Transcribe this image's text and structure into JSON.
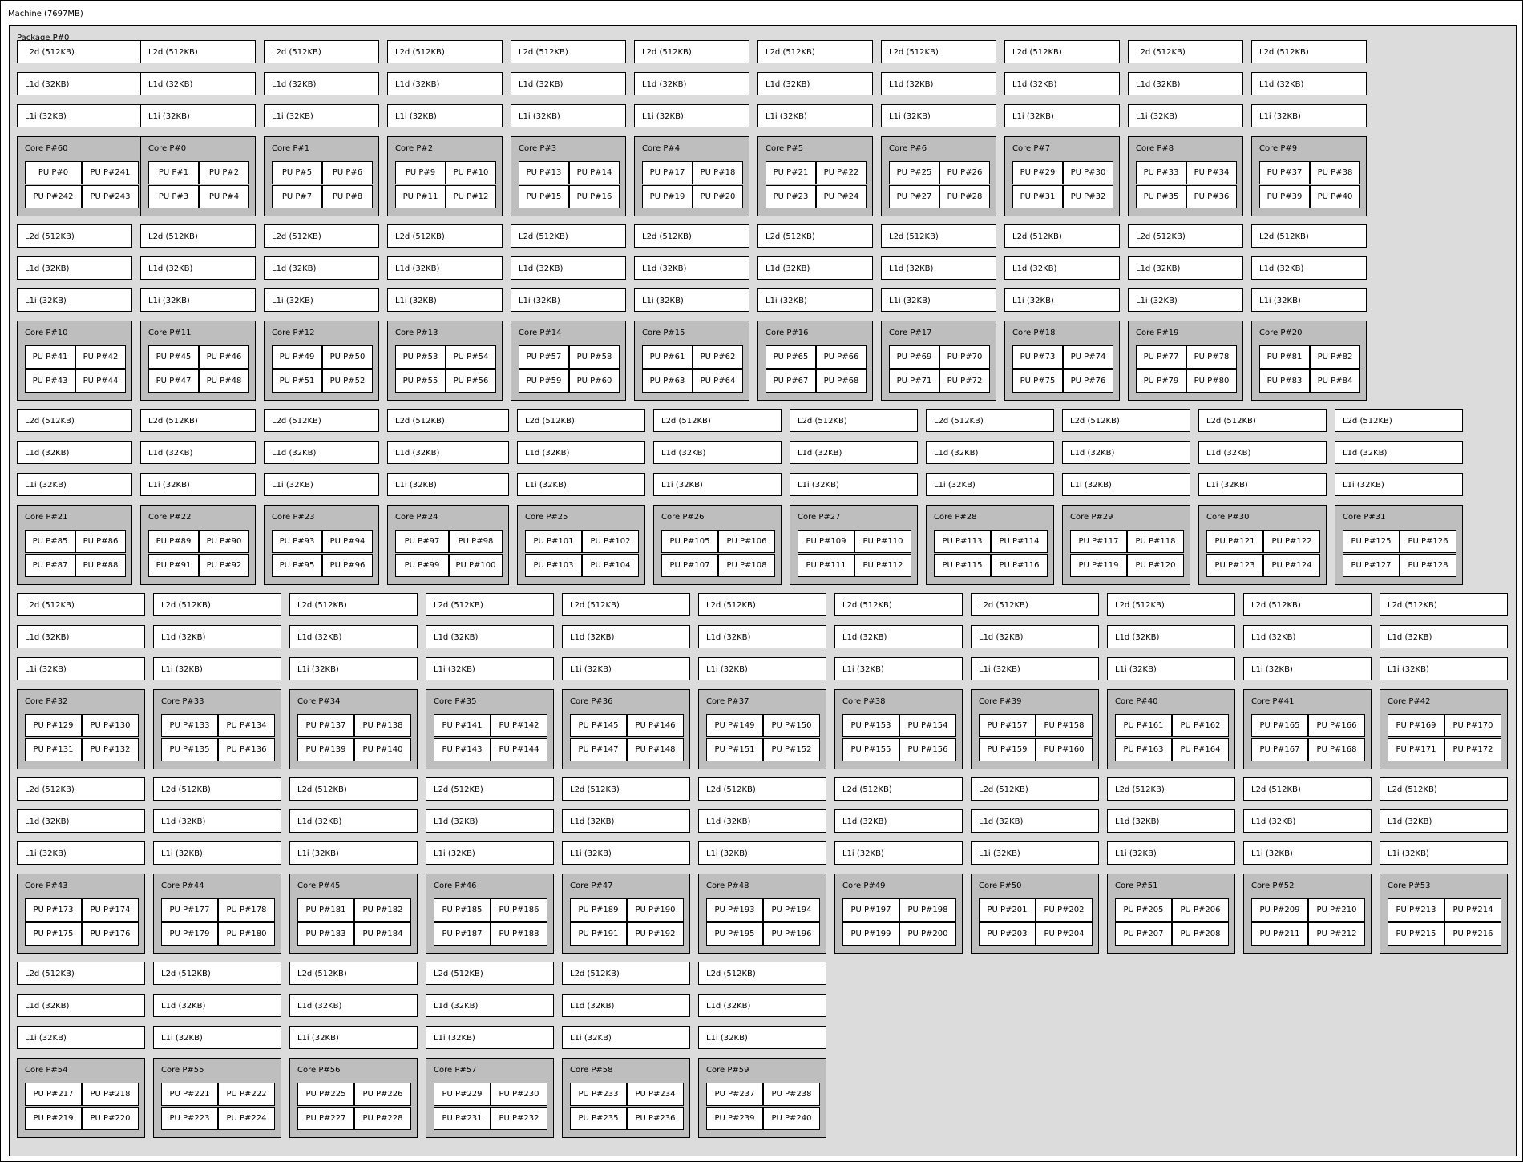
{
  "machine": {
    "label": "Machine (7697MB)"
  },
  "package": {
    "label": "Package P#0"
  },
  "cache_labels": {
    "l2": "L2d (512KB)",
    "l1d": "L1d (32KB)",
    "l1i": "L1i (32KB)"
  },
  "rows": [
    {
      "cores": [
        {
          "label": "Core P#60",
          "pus": [
            "PU P#0",
            "PU P#241",
            "PU P#242",
            "PU P#243"
          ]
        },
        {
          "label": "Core P#0",
          "pus": [
            "PU P#1",
            "PU P#2",
            "PU P#3",
            "PU P#4"
          ]
        },
        {
          "label": "Core P#1",
          "pus": [
            "PU P#5",
            "PU P#6",
            "PU P#7",
            "PU P#8"
          ]
        },
        {
          "label": "Core P#2",
          "pus": [
            "PU P#9",
            "PU P#10",
            "PU P#11",
            "PU P#12"
          ]
        },
        {
          "label": "Core P#3",
          "pus": [
            "PU P#13",
            "PU P#14",
            "PU P#15",
            "PU P#16"
          ]
        },
        {
          "label": "Core P#4",
          "pus": [
            "PU P#17",
            "PU P#18",
            "PU P#19",
            "PU P#20"
          ]
        },
        {
          "label": "Core P#5",
          "pus": [
            "PU P#21",
            "PU P#22",
            "PU P#23",
            "PU P#24"
          ]
        },
        {
          "label": "Core P#6",
          "pus": [
            "PU P#25",
            "PU P#26",
            "PU P#27",
            "PU P#28"
          ]
        },
        {
          "label": "Core P#7",
          "pus": [
            "PU P#29",
            "PU P#30",
            "PU P#31",
            "PU P#32"
          ]
        },
        {
          "label": "Core P#8",
          "pus": [
            "PU P#33",
            "PU P#34",
            "PU P#35",
            "PU P#36"
          ]
        },
        {
          "label": "Core P#9",
          "pus": [
            "PU P#37",
            "PU P#38",
            "PU P#39",
            "PU P#40"
          ]
        }
      ]
    },
    {
      "cores": [
        {
          "label": "Core P#10",
          "pus": [
            "PU P#41",
            "PU P#42",
            "PU P#43",
            "PU P#44"
          ]
        },
        {
          "label": "Core P#11",
          "pus": [
            "PU P#45",
            "PU P#46",
            "PU P#47",
            "PU P#48"
          ]
        },
        {
          "label": "Core P#12",
          "pus": [
            "PU P#49",
            "PU P#50",
            "PU P#51",
            "PU P#52"
          ]
        },
        {
          "label": "Core P#13",
          "pus": [
            "PU P#53",
            "PU P#54",
            "PU P#55",
            "PU P#56"
          ]
        },
        {
          "label": "Core P#14",
          "pus": [
            "PU P#57",
            "PU P#58",
            "PU P#59",
            "PU P#60"
          ]
        },
        {
          "label": "Core P#15",
          "pus": [
            "PU P#61",
            "PU P#62",
            "PU P#63",
            "PU P#64"
          ]
        },
        {
          "label": "Core P#16",
          "pus": [
            "PU P#65",
            "PU P#66",
            "PU P#67",
            "PU P#68"
          ]
        },
        {
          "label": "Core P#17",
          "pus": [
            "PU P#69",
            "PU P#70",
            "PU P#71",
            "PU P#72"
          ]
        },
        {
          "label": "Core P#18",
          "pus": [
            "PU P#73",
            "PU P#74",
            "PU P#75",
            "PU P#76"
          ]
        },
        {
          "label": "Core P#19",
          "pus": [
            "PU P#77",
            "PU P#78",
            "PU P#79",
            "PU P#80"
          ]
        },
        {
          "label": "Core P#20",
          "pus": [
            "PU P#81",
            "PU P#82",
            "PU P#83",
            "PU P#84"
          ]
        }
      ]
    },
    {
      "cores": [
        {
          "label": "Core P#21",
          "pus": [
            "PU P#85",
            "PU P#86",
            "PU P#87",
            "PU P#88"
          ]
        },
        {
          "label": "Core P#22",
          "pus": [
            "PU P#89",
            "PU P#90",
            "PU P#91",
            "PU P#92"
          ]
        },
        {
          "label": "Core P#23",
          "pus": [
            "PU P#93",
            "PU P#94",
            "PU P#95",
            "PU P#96"
          ]
        },
        {
          "label": "Core P#24",
          "pus": [
            "PU P#97",
            "PU P#98",
            "PU P#99",
            "PU P#100"
          ]
        },
        {
          "label": "Core P#25",
          "pus": [
            "PU P#101",
            "PU P#102",
            "PU P#103",
            "PU P#104"
          ]
        },
        {
          "label": "Core P#26",
          "pus": [
            "PU P#105",
            "PU P#106",
            "PU P#107",
            "PU P#108"
          ]
        },
        {
          "label": "Core P#27",
          "pus": [
            "PU P#109",
            "PU P#110",
            "PU P#111",
            "PU P#112"
          ]
        },
        {
          "label": "Core P#28",
          "pus": [
            "PU P#113",
            "PU P#114",
            "PU P#115",
            "PU P#116"
          ]
        },
        {
          "label": "Core P#29",
          "pus": [
            "PU P#117",
            "PU P#118",
            "PU P#119",
            "PU P#120"
          ]
        },
        {
          "label": "Core P#30",
          "pus": [
            "PU P#121",
            "PU P#122",
            "PU P#123",
            "PU P#124"
          ]
        },
        {
          "label": "Core P#31",
          "pus": [
            "PU P#125",
            "PU P#126",
            "PU P#127",
            "PU P#128"
          ]
        }
      ]
    },
    {
      "cores": [
        {
          "label": "Core P#32",
          "pus": [
            "PU P#129",
            "PU P#130",
            "PU P#131",
            "PU P#132"
          ]
        },
        {
          "label": "Core P#33",
          "pus": [
            "PU P#133",
            "PU P#134",
            "PU P#135",
            "PU P#136"
          ]
        },
        {
          "label": "Core P#34",
          "pus": [
            "PU P#137",
            "PU P#138",
            "PU P#139",
            "PU P#140"
          ]
        },
        {
          "label": "Core P#35",
          "pus": [
            "PU P#141",
            "PU P#142",
            "PU P#143",
            "PU P#144"
          ]
        },
        {
          "label": "Core P#36",
          "pus": [
            "PU P#145",
            "PU P#146",
            "PU P#147",
            "PU P#148"
          ]
        },
        {
          "label": "Core P#37",
          "pus": [
            "PU P#149",
            "PU P#150",
            "PU P#151",
            "PU P#152"
          ]
        },
        {
          "label": "Core P#38",
          "pus": [
            "PU P#153",
            "PU P#154",
            "PU P#155",
            "PU P#156"
          ]
        },
        {
          "label": "Core P#39",
          "pus": [
            "PU P#157",
            "PU P#158",
            "PU P#159",
            "PU P#160"
          ]
        },
        {
          "label": "Core P#40",
          "pus": [
            "PU P#161",
            "PU P#162",
            "PU P#163",
            "PU P#164"
          ]
        },
        {
          "label": "Core P#41",
          "pus": [
            "PU P#165",
            "PU P#166",
            "PU P#167",
            "PU P#168"
          ]
        },
        {
          "label": "Core P#42",
          "pus": [
            "PU P#169",
            "PU P#170",
            "PU P#171",
            "PU P#172"
          ]
        }
      ]
    },
    {
      "cores": [
        {
          "label": "Core P#43",
          "pus": [
            "PU P#173",
            "PU P#174",
            "PU P#175",
            "PU P#176"
          ]
        },
        {
          "label": "Core P#44",
          "pus": [
            "PU P#177",
            "PU P#178",
            "PU P#179",
            "PU P#180"
          ]
        },
        {
          "label": "Core P#45",
          "pus": [
            "PU P#181",
            "PU P#182",
            "PU P#183",
            "PU P#184"
          ]
        },
        {
          "label": "Core P#46",
          "pus": [
            "PU P#185",
            "PU P#186",
            "PU P#187",
            "PU P#188"
          ]
        },
        {
          "label": "Core P#47",
          "pus": [
            "PU P#189",
            "PU P#190",
            "PU P#191",
            "PU P#192"
          ]
        },
        {
          "label": "Core P#48",
          "pus": [
            "PU P#193",
            "PU P#194",
            "PU P#195",
            "PU P#196"
          ]
        },
        {
          "label": "Core P#49",
          "pus": [
            "PU P#197",
            "PU P#198",
            "PU P#199",
            "PU P#200"
          ]
        },
        {
          "label": "Core P#50",
          "pus": [
            "PU P#201",
            "PU P#202",
            "PU P#203",
            "PU P#204"
          ]
        },
        {
          "label": "Core P#51",
          "pus": [
            "PU P#205",
            "PU P#206",
            "PU P#207",
            "PU P#208"
          ]
        },
        {
          "label": "Core P#52",
          "pus": [
            "PU P#209",
            "PU P#210",
            "PU P#211",
            "PU P#212"
          ]
        },
        {
          "label": "Core P#53",
          "pus": [
            "PU P#213",
            "PU P#214",
            "PU P#215",
            "PU P#216"
          ]
        }
      ]
    },
    {
      "cores": [
        {
          "label": "Core P#54",
          "pus": [
            "PU P#217",
            "PU P#218",
            "PU P#219",
            "PU P#220"
          ]
        },
        {
          "label": "Core P#55",
          "pus": [
            "PU P#221",
            "PU P#222",
            "PU P#223",
            "PU P#224"
          ]
        },
        {
          "label": "Core P#56",
          "pus": [
            "PU P#225",
            "PU P#226",
            "PU P#227",
            "PU P#228"
          ]
        },
        {
          "label": "Core P#57",
          "pus": [
            "PU P#229",
            "PU P#230",
            "PU P#231",
            "PU P#232"
          ]
        },
        {
          "label": "Core P#58",
          "pus": [
            "PU P#233",
            "PU P#234",
            "PU P#235",
            "PU P#236"
          ]
        },
        {
          "label": "Core P#59",
          "pus": [
            "PU P#237",
            "PU P#238",
            "PU P#239",
            "PU P#240"
          ]
        }
      ]
    }
  ]
}
